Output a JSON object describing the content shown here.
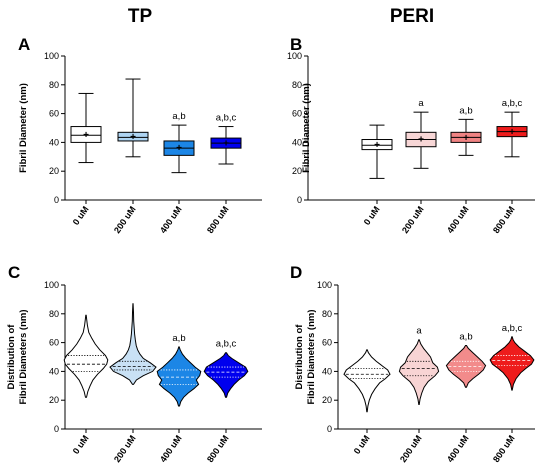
{
  "column_titles": [
    "TP",
    "PERI"
  ],
  "chart_data": [
    {
      "panel": "A",
      "type": "box",
      "ylabel": "Fibril Diameter (nm)",
      "ylim": [
        0,
        100
      ],
      "yticks": [
        0,
        20,
        40,
        60,
        80,
        100
      ],
      "categories": [
        "0 uM",
        "200 uM",
        "400 uM",
        "800 uM"
      ],
      "significance": [
        "",
        "",
        "a,b",
        "a,b,c"
      ],
      "colors": [
        "#ffffff",
        "#aed4f2",
        "#1c86e6",
        "#0000ee"
      ],
      "series": [
        {
          "min": 26,
          "q1": 40,
          "median": 45,
          "mean": 45.5,
          "q3": 51,
          "max": 74
        },
        {
          "min": 30,
          "q1": 41,
          "median": 43.5,
          "mean": 44,
          "q3": 47,
          "max": 84
        },
        {
          "min": 19,
          "q1": 31,
          "median": 36,
          "mean": 36.5,
          "q3": 41,
          "max": 52
        },
        {
          "min": 25,
          "q1": 36,
          "median": 39.5,
          "mean": 39.5,
          "q3": 43,
          "max": 51
        }
      ]
    },
    {
      "panel": "B",
      "type": "box",
      "ylabel": "Fibril Diameter (nm)",
      "ylim": [
        0,
        100
      ],
      "yticks": [
        0,
        20,
        40,
        60,
        80,
        100
      ],
      "categories": [
        "0 uM",
        "200 uM",
        "400 uM",
        "800 uM"
      ],
      "significance": [
        "",
        "a",
        "a,b",
        "a,b,c"
      ],
      "colors": [
        "#ffffff",
        "#f7d6d6",
        "#f08383",
        "#ee1c1c"
      ],
      "series": [
        {
          "min": 15,
          "q1": 35,
          "median": 38,
          "mean": 38.5,
          "q3": 42,
          "max": 52
        },
        {
          "min": 22,
          "q1": 37,
          "median": 42,
          "mean": 42.5,
          "q3": 47,
          "max": 61
        },
        {
          "min": 31,
          "q1": 40,
          "median": 43.5,
          "mean": 43.5,
          "q3": 47,
          "max": 56
        },
        {
          "min": 30,
          "q1": 44,
          "median": 47.5,
          "mean": 47.5,
          "q3": 51,
          "max": 61
        }
      ]
    },
    {
      "panel": "C",
      "type": "violin",
      "ylabel": "Distribution of Fibril Diameters (nm)",
      "ylabel_lines": [
        "Distribution of",
        "Fibril Diameters (nm)"
      ],
      "ylim": [
        0,
        100
      ],
      "yticks": [
        0,
        20,
        40,
        60,
        80,
        100
      ],
      "categories": [
        "0 uM",
        "200 uM",
        "400 uM",
        "800 uM"
      ],
      "significance": [
        "",
        "",
        "a,b",
        "a,b,c"
      ],
      "colors": [
        "#ffffff",
        "#c9e1f5",
        "#1c86e6",
        "#0000ee"
      ],
      "series": [
        {
          "min": 22,
          "max": 79,
          "q1": 40,
          "median": 45,
          "q3": 51,
          "width": 0.78,
          "profile": [
            [
              22,
              0.02
            ],
            [
              26,
              0.08
            ],
            [
              30,
              0.18
            ],
            [
              34,
              0.3
            ],
            [
              38,
              0.5
            ],
            [
              42,
              0.75
            ],
            [
              45,
              0.9
            ],
            [
              48,
              0.95
            ],
            [
              51,
              0.85
            ],
            [
              55,
              0.6
            ],
            [
              59,
              0.4
            ],
            [
              63,
              0.25
            ],
            [
              67,
              0.12
            ],
            [
              72,
              0.06
            ],
            [
              76,
              0.03
            ],
            [
              79,
              0.01
            ]
          ]
        },
        {
          "min": 31,
          "max": 87,
          "q1": 41,
          "median": 43.5,
          "q3": 47,
          "width": 0.78,
          "profile": [
            [
              31,
              0.02
            ],
            [
              34,
              0.15
            ],
            [
              37,
              0.45
            ],
            [
              40,
              0.85
            ],
            [
              43,
              1.0
            ],
            [
              46,
              0.75
            ],
            [
              49,
              0.45
            ],
            [
              52,
              0.3
            ],
            [
              55,
              0.2
            ],
            [
              58,
              0.14
            ],
            [
              62,
              0.1
            ],
            [
              66,
              0.07
            ],
            [
              70,
              0.05
            ],
            [
              75,
              0.03
            ],
            [
              81,
              0.02
            ],
            [
              87,
              0.005
            ]
          ]
        },
        {
          "min": 16,
          "max": 57,
          "q1": 31,
          "median": 36,
          "q3": 41,
          "width": 0.78,
          "profile": [
            [
              16,
              0.02
            ],
            [
              19,
              0.08
            ],
            [
              22,
              0.2
            ],
            [
              25,
              0.4
            ],
            [
              28,
              0.65
            ],
            [
              31,
              0.85
            ],
            [
              34,
              0.75
            ],
            [
              37,
              0.9
            ],
            [
              40,
              0.95
            ],
            [
              43,
              0.7
            ],
            [
              46,
              0.5
            ],
            [
              49,
              0.3
            ],
            [
              52,
              0.15
            ],
            [
              55,
              0.05
            ],
            [
              57,
              0.01
            ]
          ]
        },
        {
          "min": 22,
          "max": 53,
          "q1": 36,
          "median": 39.5,
          "q3": 43,
          "width": 0.78,
          "profile": [
            [
              22,
              0.02
            ],
            [
              25,
              0.08
            ],
            [
              28,
              0.2
            ],
            [
              31,
              0.35
            ],
            [
              34,
              0.55
            ],
            [
              37,
              0.8
            ],
            [
              40,
              0.95
            ],
            [
              43,
              0.85
            ],
            [
              46,
              0.55
            ],
            [
              49,
              0.25
            ],
            [
              51,
              0.1
            ],
            [
              53,
              0.02
            ]
          ]
        }
      ]
    },
    {
      "panel": "D",
      "type": "violin",
      "ylabel": "Distribution of Fibril Diameters (nm)",
      "ylabel_lines": [
        "Distribution of",
        "Fibril Diameters (nm)"
      ],
      "ylim": [
        0,
        100
      ],
      "yticks": [
        0,
        20,
        40,
        60,
        80,
        100
      ],
      "categories": [
        "0 uM",
        "200 uM",
        "400 uM",
        "800 uM"
      ],
      "significance": [
        "",
        "a",
        "a,b",
        "a,b,c"
      ],
      "colors": [
        "#ffffff",
        "#f8d4d4",
        "#f28b8b",
        "#ee1c1c"
      ],
      "series": [
        {
          "min": 12,
          "max": 55,
          "q1": 35,
          "median": 38,
          "q3": 42,
          "width": 0.78,
          "profile": [
            [
              12,
              0.01
            ],
            [
              16,
              0.04
            ],
            [
              20,
              0.1
            ],
            [
              24,
              0.2
            ],
            [
              28,
              0.35
            ],
            [
              32,
              0.55
            ],
            [
              35,
              0.8
            ],
            [
              38,
              1.0
            ],
            [
              41,
              0.9
            ],
            [
              44,
              0.65
            ],
            [
              47,
              0.4
            ],
            [
              50,
              0.2
            ],
            [
              53,
              0.06
            ],
            [
              55,
              0.01
            ]
          ]
        },
        {
          "min": 17,
          "max": 62,
          "q1": 37,
          "median": 42,
          "q3": 47,
          "width": 0.78,
          "profile": [
            [
              17,
              0.01
            ],
            [
              21,
              0.05
            ],
            [
              25,
              0.12
            ],
            [
              29,
              0.22
            ],
            [
              33,
              0.4
            ],
            [
              37,
              0.7
            ],
            [
              40,
              0.85
            ],
            [
              43,
              0.8
            ],
            [
              46,
              0.6
            ],
            [
              50,
              0.5
            ],
            [
              53,
              0.35
            ],
            [
              56,
              0.2
            ],
            [
              59,
              0.08
            ],
            [
              62,
              0.01
            ]
          ]
        },
        {
          "min": 29,
          "max": 58,
          "q1": 40,
          "median": 43.5,
          "q3": 47,
          "width": 0.78,
          "profile": [
            [
              29,
              0.02
            ],
            [
              32,
              0.1
            ],
            [
              35,
              0.3
            ],
            [
              38,
              0.55
            ],
            [
              41,
              0.75
            ],
            [
              44,
              0.85
            ],
            [
              47,
              0.7
            ],
            [
              50,
              0.5
            ],
            [
              53,
              0.3
            ],
            [
              56,
              0.1
            ],
            [
              58,
              0.02
            ]
          ]
        },
        {
          "min": 27,
          "max": 64,
          "q1": 44,
          "median": 47.5,
          "q3": 51,
          "width": 0.78,
          "profile": [
            [
              27,
              0.01
            ],
            [
              31,
              0.06
            ],
            [
              35,
              0.18
            ],
            [
              39,
              0.38
            ],
            [
              42,
              0.6
            ],
            [
              45,
              0.85
            ],
            [
              48,
              0.95
            ],
            [
              51,
              0.8
            ],
            [
              54,
              0.55
            ],
            [
              57,
              0.3
            ],
            [
              60,
              0.12
            ],
            [
              62,
              0.05
            ],
            [
              64,
              0.01
            ]
          ]
        }
      ]
    }
  ]
}
